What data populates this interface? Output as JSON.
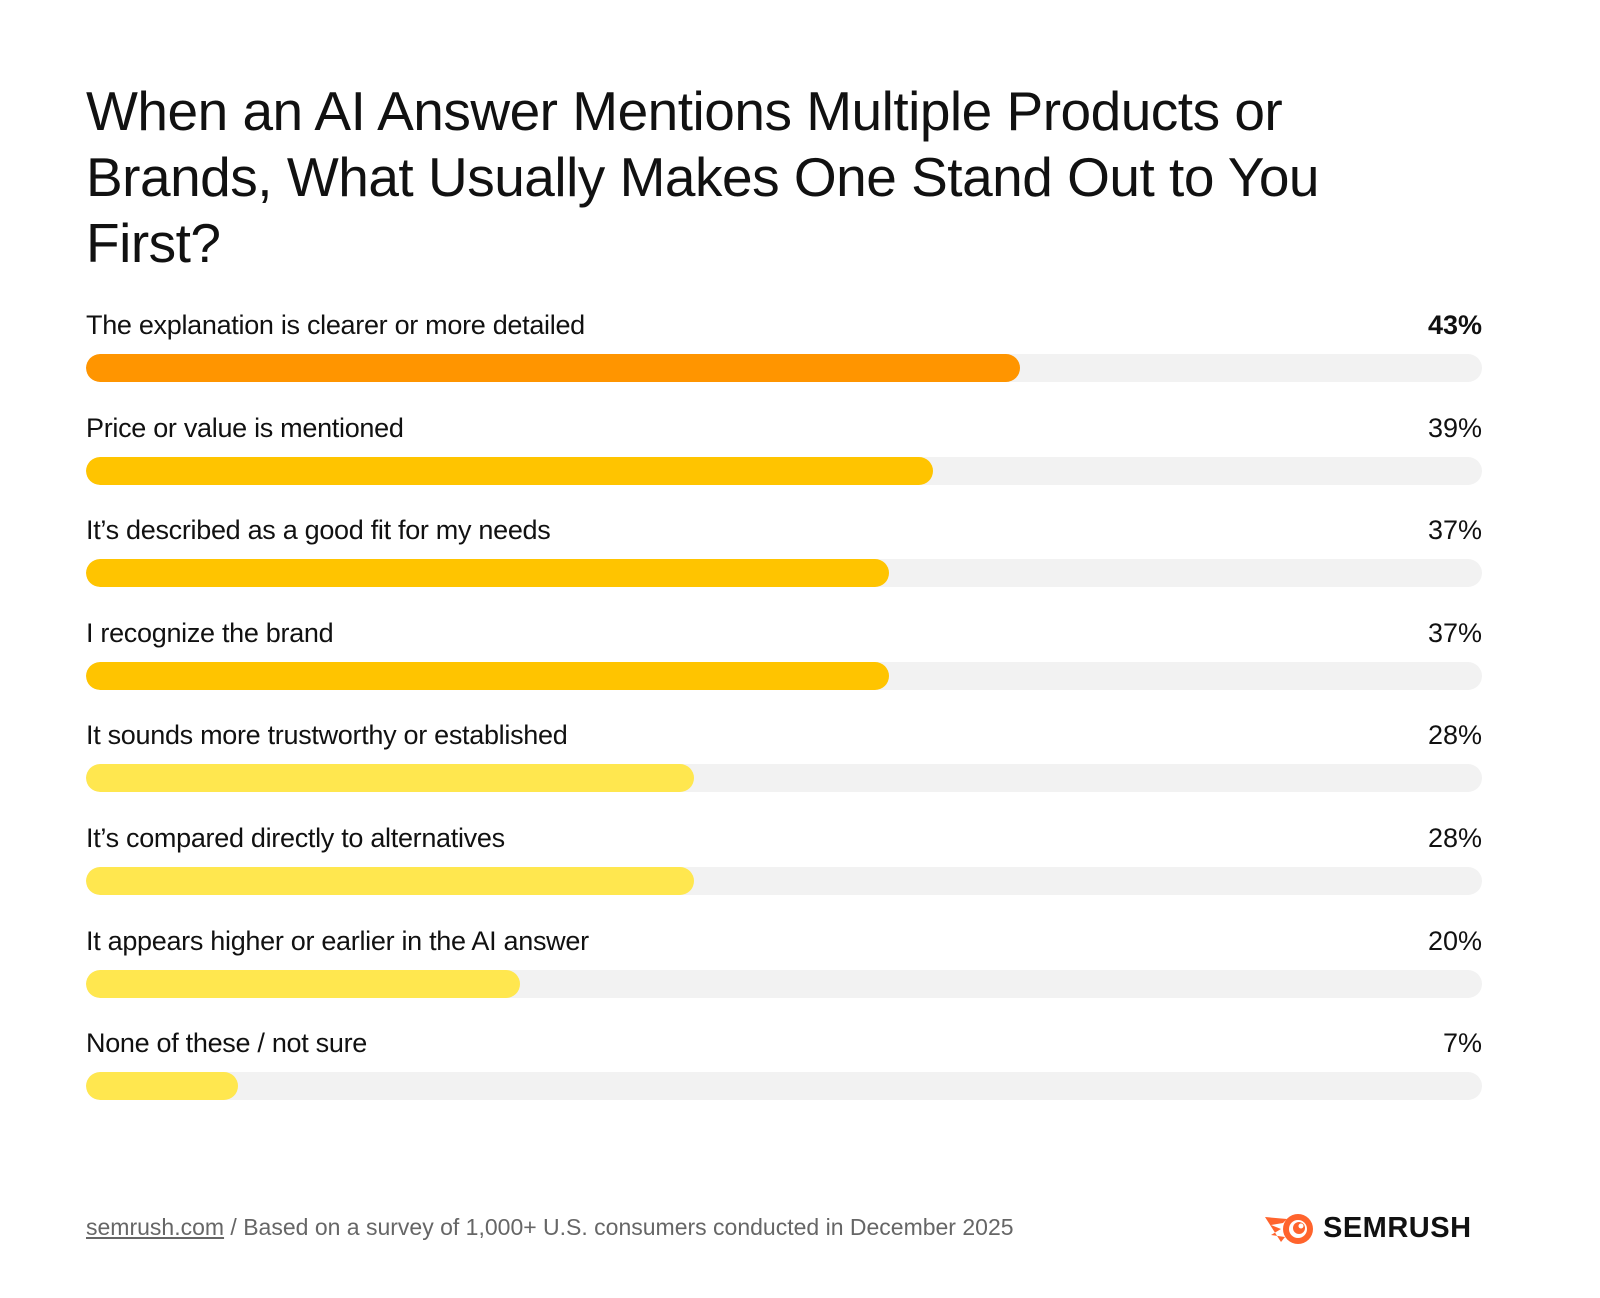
{
  "chart_data": {
    "type": "bar",
    "orientation": "horizontal",
    "title": "When an AI Answer Mentions Multiple Products or Brands, What Usually Makes One Stand Out to You First?",
    "unit": "%",
    "xlim": [
      0,
      64.3
    ],
    "grid": false,
    "categories": [
      "The explanation is clearer or more detailed",
      "Price or value is mentioned",
      "It’s described as a good fit for my needs",
      "I recognize the brand",
      "It sounds more trustworthy or established",
      "It’s compared directly to alternatives",
      "It appears higher or earlier in the AI answer",
      "None of these / not sure"
    ],
    "values": [
      43,
      39,
      37,
      37,
      28,
      28,
      20,
      7
    ],
    "value_labels": [
      "43%",
      "39%",
      "37%",
      "37%",
      "28%",
      "28%",
      "20%",
      "7%"
    ],
    "colors": [
      "#FF9500",
      "#FFC400",
      "#FFC400",
      "#FFC400",
      "#FFE74F",
      "#FFE74F",
      "#FFE74F",
      "#FFE74F"
    ],
    "track_color": "#F2F2F2"
  },
  "footer": {
    "link": "semrush.com",
    "source": " / Based on a survey of 1,000+ U.S. consumers conducted in December 2025"
  },
  "logo": {
    "text": "SEMRUSH",
    "color": "#FF642D"
  }
}
